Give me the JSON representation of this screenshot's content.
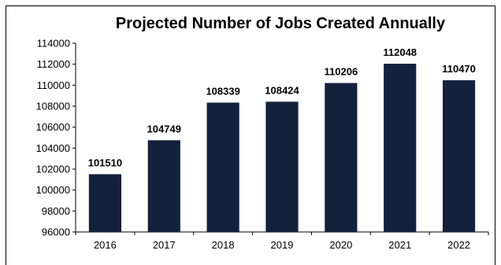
{
  "chart_data": {
    "type": "bar",
    "title": "Projected Number of Jobs Created Annually",
    "xlabel": "",
    "ylabel": "",
    "categories": [
      "2016",
      "2017",
      "2018",
      "2019",
      "2020",
      "2021",
      "2022"
    ],
    "values": [
      101510,
      104749,
      108339,
      108424,
      110206,
      112048,
      110470
    ],
    "data_labels": [
      "101510",
      "104749",
      "108339",
      "108424",
      "110206",
      "112048",
      "110470"
    ],
    "ylim": [
      96000,
      114000
    ],
    "yticks": [
      "96000",
      "98000",
      "100000",
      "102000",
      "104000",
      "106000",
      "108000",
      "110000",
      "112000",
      "114000"
    ],
    "bar_color": "#14213d",
    "grid": false,
    "legend": "none"
  }
}
